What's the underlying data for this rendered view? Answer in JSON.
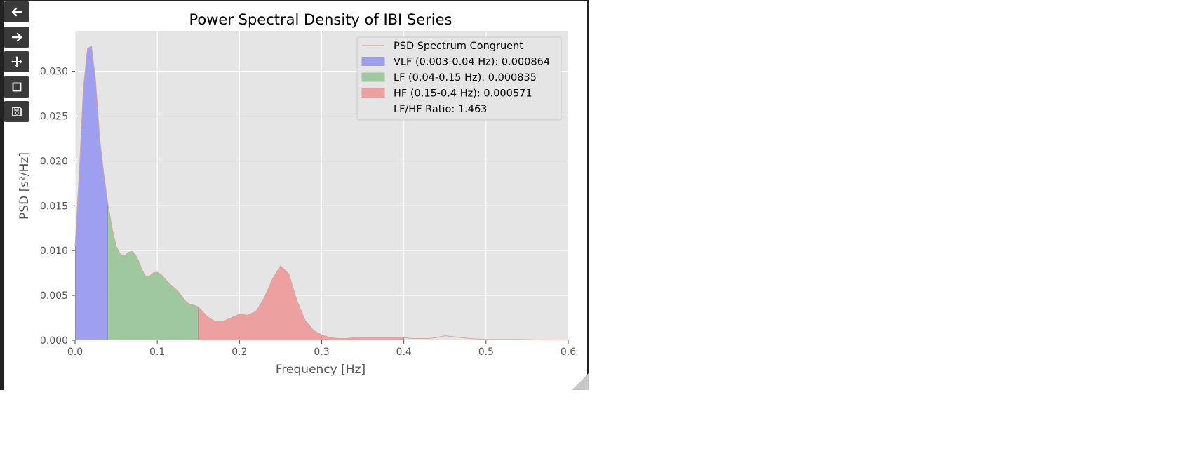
{
  "toolbar": {
    "buttons": [
      {
        "icon": "arrow-left-icon",
        "name": "back-button"
      },
      {
        "icon": "arrow-right-icon",
        "name": "forward-button"
      },
      {
        "icon": "move-icon",
        "name": "pan-button"
      },
      {
        "icon": "zoom-rect-icon",
        "name": "zoom-button"
      },
      {
        "icon": "save-icon",
        "name": "save-button"
      }
    ]
  },
  "chart_data": {
    "type": "area",
    "title": "Power Spectral Density of IBI Series",
    "xlabel": "Frequency [Hz]",
    "ylabel": "PSD [s²/Hz]",
    "xlim": [
      0.0,
      0.6
    ],
    "ylim": [
      0.0,
      0.0345
    ],
    "x_ticks": [
      "0.0",
      "0.1",
      "0.2",
      "0.3",
      "0.4",
      "0.5",
      "0.6"
    ],
    "y_ticks": [
      "0.000",
      "0.005",
      "0.010",
      "0.015",
      "0.020",
      "0.025",
      "0.030"
    ],
    "grid": true,
    "legend_position": "top-right",
    "series": [
      {
        "name": "PSD Spectrum Congruent",
        "color": "#d4a89a",
        "x": [
          0.0,
          0.005,
          0.01,
          0.015,
          0.02,
          0.025,
          0.03,
          0.035,
          0.04,
          0.045,
          0.05,
          0.055,
          0.06,
          0.065,
          0.07,
          0.075,
          0.08,
          0.085,
          0.09,
          0.095,
          0.1,
          0.105,
          0.11,
          0.115,
          0.12,
          0.125,
          0.13,
          0.135,
          0.14,
          0.145,
          0.15,
          0.16,
          0.17,
          0.18,
          0.19,
          0.2,
          0.21,
          0.22,
          0.23,
          0.24,
          0.25,
          0.26,
          0.27,
          0.28,
          0.29,
          0.3,
          0.31,
          0.32,
          0.33,
          0.34,
          0.35,
          0.36,
          0.37,
          0.38,
          0.39,
          0.4,
          0.41,
          0.42,
          0.43,
          0.44,
          0.45,
          0.46,
          0.47,
          0.48,
          0.49,
          0.5,
          0.52,
          0.54,
          0.56,
          0.58,
          0.6
        ],
        "values": [
          0.0105,
          0.0185,
          0.028,
          0.0325,
          0.0328,
          0.029,
          0.0225,
          0.0185,
          0.0152,
          0.0125,
          0.0105,
          0.0096,
          0.0094,
          0.0098,
          0.0099,
          0.0093,
          0.0082,
          0.0072,
          0.0071,
          0.0075,
          0.0076,
          0.0073,
          0.0068,
          0.0063,
          0.0059,
          0.0055,
          0.0049,
          0.0043,
          0.004,
          0.0039,
          0.0037,
          0.0027,
          0.0021,
          0.0021,
          0.0025,
          0.0029,
          0.0028,
          0.0032,
          0.0047,
          0.0068,
          0.0083,
          0.0074,
          0.0044,
          0.0022,
          0.0011,
          0.0006,
          0.0003,
          0.0002,
          0.0002,
          0.0003,
          0.0003,
          0.0003,
          0.0003,
          0.0003,
          0.0003,
          0.0003,
          0.0002,
          0.0002,
          0.0002,
          0.0003,
          0.0005,
          0.0004,
          0.0003,
          0.0002,
          0.00015,
          0.0001,
          0.0001,
          0.0001,
          5e-05,
          3e-05,
          2e-05
        ]
      }
    ],
    "bands": [
      {
        "label": "VLF (0.003-0.04 Hz): 0.000864",
        "range": [
          0.0,
          0.04
        ],
        "color": "#9f9ff0"
      },
      {
        "label": "LF (0.04-0.15 Hz): 0.000835",
        "range": [
          0.04,
          0.15
        ],
        "color": "#9fc89f"
      },
      {
        "label": "HF (0.15-0.4 Hz): 0.000571",
        "range": [
          0.15,
          0.4
        ],
        "color": "#eda0a0"
      }
    ],
    "annotation": "LF/HF Ratio: 1.463",
    "colors": {
      "plot_background": "#e5e5e5",
      "grid": "#ffffff",
      "band_edge": "#7a7a7a"
    }
  }
}
